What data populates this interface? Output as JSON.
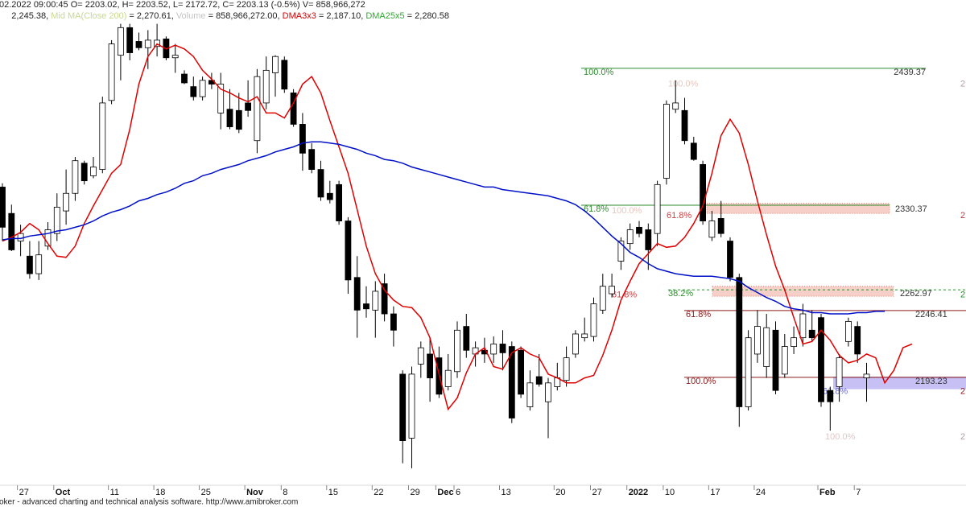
{
  "header": {
    "line1": "02.2022 09:00:45 O= 2203.02, H= 2203.52, L= 2172.72, C= 2203.13 (-0.5%) V= 858,966,272",
    "line2": [
      "2,245.38, ",
      "Mid MA(Close 200)",
      " = 2,270.61, ",
      "Volume",
      " = 858,966,272.00, ",
      " = 2,187.10, ",
      " = 2,280.58"
    ]
  },
  "footer": "oker - advanced charting and technical analysis software. http://www.amibroker.com",
  "chart_data": {
    "type": "candlestick",
    "categories": [
      null,
      null,
      "27",
      null,
      null,
      null,
      "Oct",
      null,
      null,
      null,
      null,
      null,
      "11",
      null,
      null,
      null,
      null,
      "18",
      null,
      null,
      null,
      null,
      "25",
      null,
      null,
      null,
      null,
      "Nov",
      null,
      null,
      null,
      "8",
      null,
      null,
      null,
      null,
      "15",
      null,
      null,
      null,
      null,
      "22",
      null,
      null,
      null,
      "29",
      null,
      null,
      "Dec",
      null,
      "6",
      null,
      null,
      null,
      null,
      "13",
      null,
      null,
      null,
      null,
      null,
      "20",
      null,
      null,
      null,
      "27",
      null,
      null,
      null,
      "2022",
      null,
      null,
      null,
      "10",
      null,
      null,
      null,
      null,
      "17",
      null,
      null,
      null,
      null,
      "24",
      null,
      null,
      null,
      null,
      null,
      null,
      "Feb",
      null,
      null,
      null,
      "7",
      null,
      null,
      null,
      null,
      null,
      null
    ],
    "open": [
      2348,
      2327,
      2305,
      2293,
      2279,
      2301,
      2311,
      2329,
      2343,
      2367,
      2357,
      2362,
      2417,
      2453,
      2475,
      2464,
      2459,
      2460,
      2466,
      2451,
      2438,
      2428,
      2420,
      2433,
      2407,
      2410,
      2409,
      2415,
      2385,
      2415,
      2439,
      2449,
      2423,
      2398,
      2378,
      2362,
      2343,
      2350,
      2321,
      2276,
      2255,
      2250,
      2271,
      2247,
      2199,
      2148,
      2207,
      2215,
      2212,
      2189,
      2201,
      2237,
      2215,
      2218,
      2215,
      2223,
      2221,
      2218,
      2173,
      2197,
      2177,
      2189,
      2194,
      2215,
      2228,
      2229,
      2250,
      2263,
      2289,
      2303,
      2316,
      2314,
      2311,
      2355,
      2410,
      2409,
      2383,
      2366,
      2308,
      2323,
      2305,
      2276,
      2173,
      2215,
      2205,
      2234,
      2199,
      2221,
      2228,
      2234,
      2244,
      2186,
      2189,
      2225,
      2237,
      2196,
      null,
      null,
      null,
      null,
      null
    ],
    "high": [
      2351,
      2334,
      2318,
      2305,
      2305,
      2320,
      2343,
      2362,
      2372,
      2369,
      2372,
      2420,
      2465,
      2478,
      2478,
      2471,
      2473,
      2478,
      2468,
      2462,
      2441,
      2436,
      2436,
      2439,
      2439,
      2426,
      2423,
      2433,
      2442,
      2452,
      2453,
      2452,
      2426,
      2407,
      2383,
      2369,
      2353,
      2353,
      2324,
      2293,
      2269,
      2273,
      2279,
      2253,
      2202,
      2205,
      2225,
      2228,
      2221,
      2215,
      2241,
      2247,
      2225,
      2228,
      2229,
      2234,
      2225,
      2221,
      2202,
      2215,
      2196,
      2208,
      2221,
      2234,
      2244,
      2260,
      2279,
      2279,
      2308,
      2319,
      2321,
      2319,
      2353,
      2417,
      2433,
      2419,
      2388,
      2369,
      2329,
      2337,
      2308,
      2279,
      2234,
      2250,
      2247,
      2241,
      2231,
      2237,
      2255,
      2250,
      2247,
      2189,
      2215,
      2244,
      2241,
      2208,
      null,
      null,
      null,
      null,
      null
    ],
    "low": [
      2305,
      2297,
      2293,
      2275,
      2274,
      2298,
      2305,
      2318,
      2337,
      2350,
      2355,
      2359,
      2414,
      2433,
      2449,
      2457,
      2442,
      2452,
      2449,
      2439,
      2430,
      2417,
      2417,
      2426,
      2394,
      2394,
      2391,
      2404,
      2375,
      2410,
      2420,
      2423,
      2396,
      2361,
      2359,
      2337,
      2335,
      2318,
      2263,
      2228,
      2244,
      2228,
      2241,
      2221,
      2128,
      2124,
      2196,
      2177,
      2180,
      2186,
      2196,
      2212,
      2205,
      2208,
      2208,
      2202,
      2160,
      2180,
      2170,
      2189,
      2148,
      2186,
      2189,
      2212,
      2225,
      2225,
      2247,
      2260,
      2282,
      2298,
      2308,
      2282,
      2301,
      2350,
      2407,
      2382,
      2369,
      2318,
      2305,
      2308,
      2273,
      2157,
      2170,
      2208,
      2196,
      2183,
      2196,
      2215,
      2221,
      2225,
      2173,
      2154,
      2177,
      2221,
      2208,
      2177,
      null,
      null,
      null,
      null,
      null
    ],
    "close": [
      2316,
      2298,
      2311,
      2279,
      2294,
      2314,
      2332,
      2343,
      2369,
      2353,
      2364,
      2415,
      2462,
      2475,
      2455,
      2459,
      2465,
      2465,
      2451,
      2453,
      2431,
      2420,
      2433,
      2430,
      2430,
      2396,
      2394,
      2409,
      2436,
      2441,
      2452,
      2426,
      2398,
      2375,
      2362,
      2340,
      2338,
      2321,
      2274,
      2250,
      2251,
      2265,
      2247,
      2234,
      2146,
      2199,
      2220,
      2196,
      2183,
      2202,
      2234,
      2218,
      2220,
      2215,
      2223,
      2216,
      2164,
      2183,
      2192,
      2191,
      2192,
      2196,
      2212,
      2231,
      2231,
      2255,
      2269,
      2269,
      2305,
      2314,
      2311,
      2298,
      2350,
      2414,
      2415,
      2385,
      2370,
      2321,
      2321,
      2311,
      2276,
      2173,
      2228,
      2237,
      2236,
      2186,
      2221,
      2228,
      2247,
      2228,
      2177,
      2177,
      2212,
      2241,
      2215,
      2199,
      null,
      null,
      null,
      null,
      null
    ],
    "up_color": "#ffffff",
    "down_color": "#000000",
    "series": [
      {
        "name": "DMA3x3",
        "color": "#e00000",
        "values": [
          2305,
          2308,
          2312,
          2319,
          2314,
          2303,
          2293,
          2292,
          2301,
          2319,
          2333,
          2346,
          2359,
          2366,
          2394,
          2430,
          2452,
          2462,
          2458,
          2461,
          2458,
          2452,
          2441,
          2434,
          2426,
          2423,
          2419,
          2416,
          2420,
          2407,
          2407,
          2403,
          2415,
          2430,
          2436,
          2423,
          2401,
          2380,
          2359,
          2330,
          2301,
          2279,
          2266,
          2258,
          2253,
          2252,
          2244,
          2228,
          2199,
          2171,
          2180,
          2200,
          2215,
          2220,
          2205,
          2203,
          2216,
          2220,
          2215,
          2212,
          2199,
          2196,
          2192,
          2192,
          2196,
          2198,
          2214,
          2234,
          2258,
          2273,
          2287,
          2295,
          2303,
          2300,
          2301,
          2308,
          2319,
          2333,
          2359,
          2389,
          2402,
          2391,
          2366,
          2337,
          2310,
          2285,
          2266,
          2244,
          2223,
          2225,
          2234,
          2226,
          2214,
          2208,
          2210,
          2215,
          2212,
          2192,
          2202,
          2220,
          2223
        ]
      },
      {
        "name": "DMA25x5",
        "color": "#0010c8",
        "values": [
          2306,
          2307,
          2307,
          2309,
          2310,
          2311,
          2313,
          2314,
          2316,
          2318,
          2321,
          2325,
          2328,
          2330,
          2333,
          2337,
          2339,
          2342,
          2344,
          2347,
          2351,
          2353,
          2357,
          2359,
          2362,
          2364,
          2366,
          2369,
          2371,
          2373,
          2376,
          2378,
          2380,
          2383,
          2384,
          2384,
          2383,
          2382,
          2380,
          2378,
          2375,
          2373,
          2370,
          2369,
          2367,
          2364,
          2362,
          2360,
          2358,
          2356,
          2354,
          2352,
          2350,
          2348,
          2348,
          2346,
          2345,
          2344,
          2343,
          2342,
          2341,
          2339,
          2337,
          2334,
          2329,
          2323,
          2316,
          2309,
          2303,
          2296,
          2292,
          2287,
          2283,
          2281,
          2279,
          2278,
          2277,
          2277,
          2277,
          2276,
          2275,
          2273,
          2268,
          2264,
          2260,
          2257,
          2253,
          2251,
          2250,
          2248,
          2248,
          2247,
          2247,
          2247,
          2248,
          2248,
          2249,
          2249,
          null,
          null,
          null
        ]
      }
    ],
    "ylim": [
      2112.4,
      2497
    ],
    "fibs": [
      {
        "level": "100.0%",
        "price": 2439.37,
        "color": "#2e8b2e"
      },
      {
        "level": "61.8%",
        "price": 2330.37,
        "color": "#2e8b2e"
      },
      {
        "level": "38.2%",
        "price": 2262.97,
        "color": "#2e8b2e",
        "dashed": true
      },
      {
        "level": "61.8%",
        "price": 2246.41,
        "color": "#8b1a1a"
      },
      {
        "level": "100.0%",
        "price": 2193.23,
        "color": "#8b1a1a"
      }
    ],
    "fib_labels": [
      {
        "text": "100.0%",
        "price": 2430,
        "color": "#e6c6be"
      },
      {
        "text": "100.0%",
        "price": 2329,
        "color": "#e6c6be"
      },
      {
        "text": "61.8%",
        "price": 2325,
        "color": "#d04040"
      },
      {
        "text": "61.8%",
        "price": 2262,
        "color": "#d04040"
      },
      {
        "text": "61.8%",
        "price": 2185,
        "color": "#6a6ad0"
      },
      {
        "text": "100.0%",
        "price": 2149,
        "color": "#e0c8c8"
      },
      {
        "text": "2",
        "price": 2430,
        "color": "#b0a0a0"
      },
      {
        "text": "2",
        "price": 2325,
        "color": "#b04040"
      },
      {
        "text": "2",
        "price": 2262,
        "color": "#2e8b2e"
      },
      {
        "text": "2",
        "price": 2185,
        "color": "#8b1a1a"
      },
      {
        "text": "2",
        "price": 2149,
        "color": "#b0a0a0"
      }
    ],
    "zones": [
      {
        "from": 2327,
        "to": 2335,
        "color": "#f4c4ba"
      },
      {
        "from": 2261,
        "to": 2269,
        "color": "#f4c4ba"
      },
      {
        "from": 2187,
        "to": 2197,
        "color": "#b8b0f2"
      }
    ]
  }
}
